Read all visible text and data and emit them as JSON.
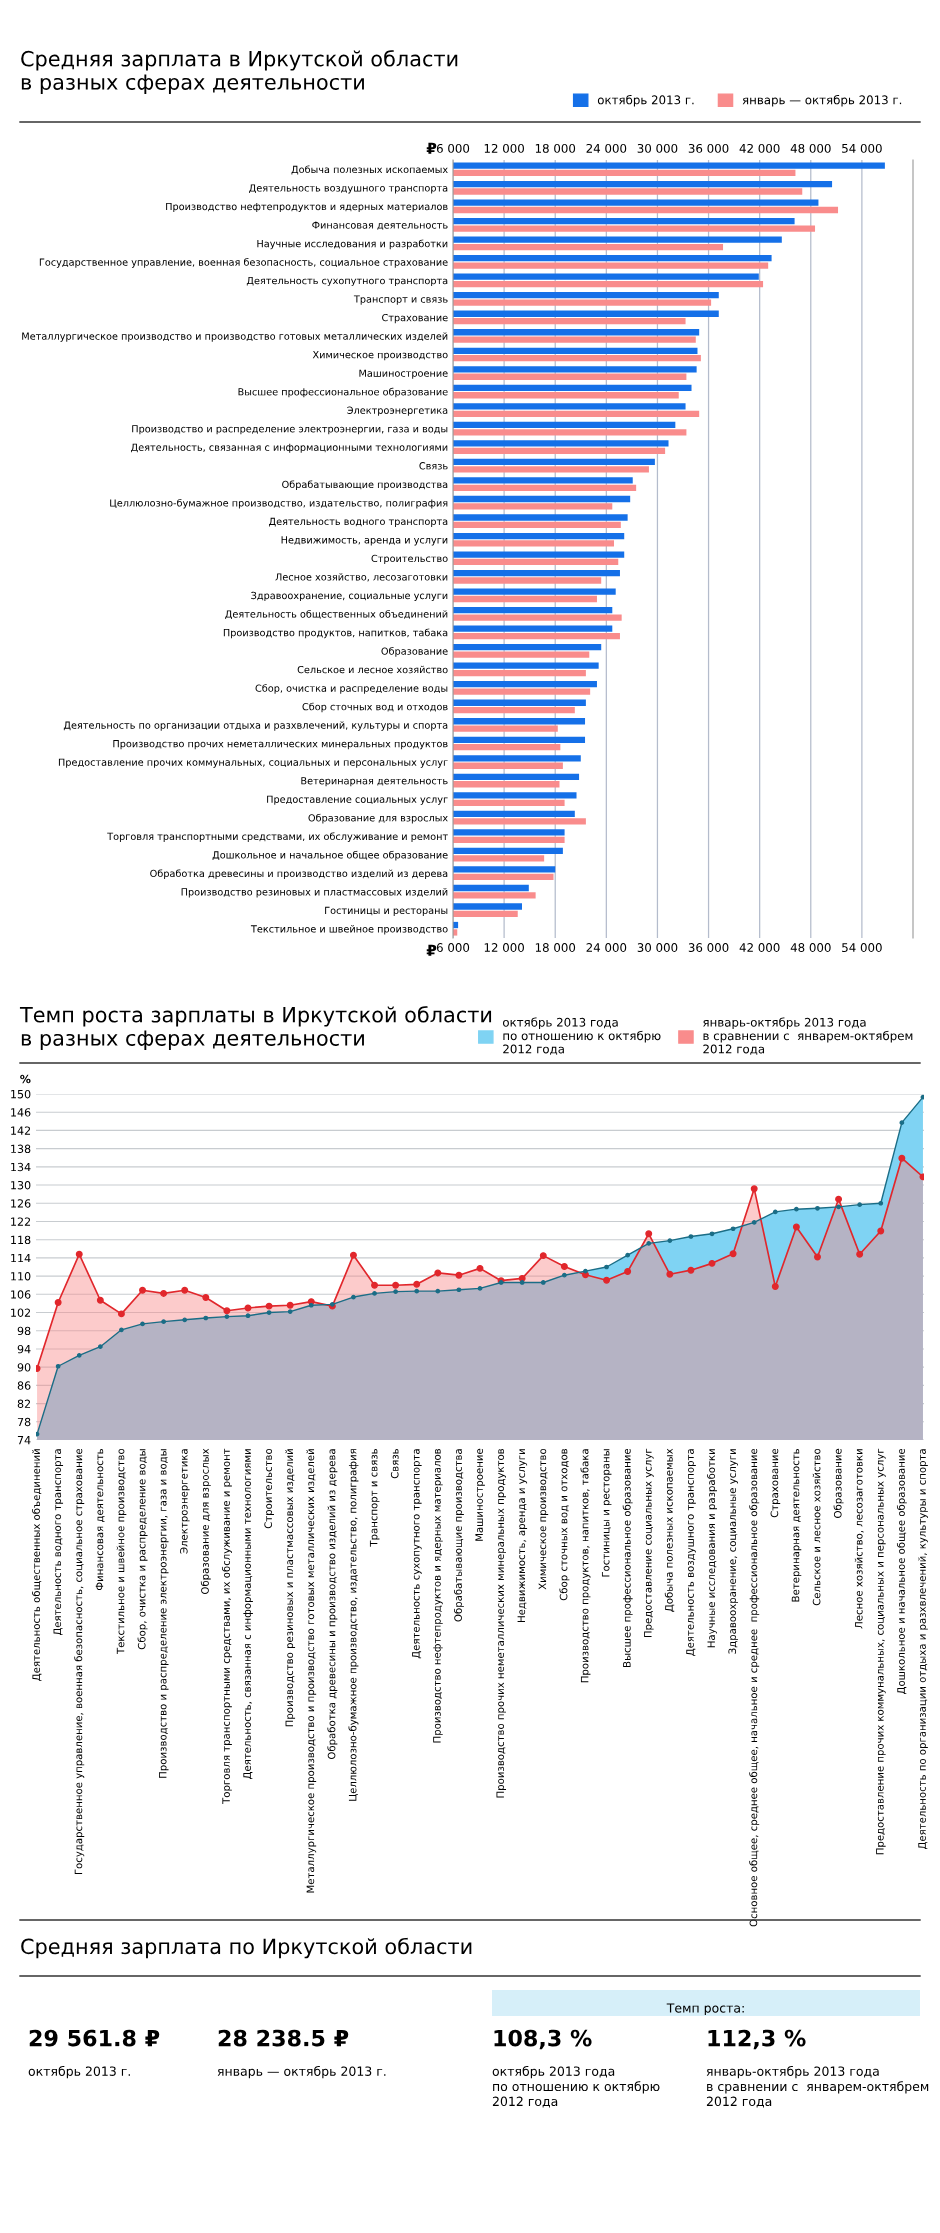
{
  "chart_data": [
    {
      "type": "bar",
      "orientation": "horizontal",
      "title": "Средняя зарплата в Иркутской области\nв разных сферах деятельности",
      "categories": [
        "Добыча полезных ископаемых",
        "Деятельность воздушного транспорта",
        "Производство нефтепродуктов и ядерных материалов",
        "Финансовая деятельность",
        "Научные исследования и разработки",
        "Государственное управление, военная безопасность, социальное страхование",
        "Деятельность сухопутного транспорта",
        "Транспорт и связь",
        "Страхование",
        "Металлургическое производство и производство готовых металлических изделей",
        "Химическое производство",
        "Машиностроение",
        "Высшее профессиональное образование",
        "Электроэнергетика",
        "Производство и распределение электроэнергии, газа и воды",
        "Деятельность, связанная с информационными технологиями",
        "Связь",
        "Обрабатывающие производства",
        "Целлюлозно-бумажное производство, издательство, полиграфия",
        "Деятельность водного транспорта",
        "Недвижимость, аренда и услуги",
        "Строительство",
        "Лесное хозяйство, лесозаготовки",
        "Здравоохранение, социальные услуги",
        "Деятельность общественных объединений",
        "Производство продуктов, напитков, табака",
        "Образование",
        "Сельское и лесное хозяйство",
        "Сбор, очистка и распределение воды",
        "Сбор сточных вод и отходов",
        "Деятельность по организации отдыха и разхвлечений, культуры и спорта",
        "Производство прочих неметаллических минеральных продуктов",
        "Предоставление прочих коммунальных, социальных и персональных услуг",
        "Ветеринарная деятельность",
        "Предоставление социальных услуг",
        "Образование для взрослых",
        "Торговля транспортными средствами, их обслуживание и ремонт",
        "Дошкольное и начальное общее образование",
        "Обработка древесины и производство изделий из дерева",
        "Производство резиновых и пластмассовых изделий",
        "Гостиницы и рестораны",
        "Текстильное и швейное производство"
      ],
      "series": [
        {
          "name": "октябрь 2013 г.",
          "color": "#1570e8",
          "values": [
            56700,
            50500,
            48900,
            46100,
            44600,
            43400,
            41900,
            37200,
            37200,
            34900,
            34700,
            34600,
            34000,
            33300,
            32100,
            31300,
            29700,
            27100,
            26800,
            26500,
            26100,
            26100,
            25600,
            25100,
            24700,
            24700,
            23400,
            23100,
            22900,
            21600,
            21500,
            21500,
            21000,
            20800,
            20500,
            20300,
            19100,
            18900,
            18000,
            14900,
            14100,
            6600
          ]
        },
        {
          "name": "январь — октябрь 2013 г.",
          "color": "#f98c8c",
          "values": [
            46200,
            47000,
            51200,
            48500,
            37700,
            43000,
            42400,
            36300,
            33300,
            34500,
            35100,
            33400,
            32500,
            34900,
            33400,
            30900,
            29000,
            27500,
            24700,
            25700,
            24900,
            25400,
            23400,
            22900,
            25800,
            25600,
            22000,
            21600,
            22100,
            20300,
            18300,
            18600,
            18900,
            18500,
            19100,
            21600,
            19100,
            16700,
            17800,
            15700,
            13600,
            6500
          ]
        }
      ],
      "xlabel": "₽",
      "x2label": "₽",
      "xlim": [
        6000,
        60000
      ],
      "x2lim": [
        6000,
        60000
      ],
      "xticks": [
        {
          "value": 6000,
          "label": "6 000"
        },
        {
          "value": 12000,
          "label": "12 000"
        },
        {
          "value": 18000,
          "label": "18 000"
        },
        {
          "value": 24000,
          "label": "24 000"
        },
        {
          "value": 30000,
          "label": "30 000"
        },
        {
          "value": 36000,
          "label": "36 000"
        },
        {
          "value": 42000,
          "label": "42 000"
        },
        {
          "value": 48000,
          "label": "48 000"
        },
        {
          "value": 54000,
          "label": "54 000"
        }
      ],
      "x2ticks": [
        {
          "value": 6000,
          "label": "6 000"
        },
        {
          "value": 12000,
          "label": "12 000"
        },
        {
          "value": 18000,
          "label": "18 000"
        },
        {
          "value": 24000,
          "label": "24 000"
        },
        {
          "value": 30000,
          "label": "30 000"
        },
        {
          "value": 36000,
          "label": "36 000"
        },
        {
          "value": 42000,
          "label": "42 000"
        },
        {
          "value": 48000,
          "label": "48 000"
        },
        {
          "value": 54000,
          "label": "54 000"
        }
      ],
      "grid": "x",
      "legend": "top right"
    },
    {
      "type": "area",
      "title": "Темп роста зарплаты в Иркутской области\nв разных сферах деятельности",
      "ylabel": "%",
      "categories": [
        "Деятельность общественных объединений",
        "Деятельность водного транспорта",
        "Государственное управление, военная безопасность, социальное страхование",
        "Финансовая деятельность",
        "Текстильное и швейное производство",
        "Сбор, очистка и распределение воды",
        "Производство и распределение электроэнергии, газа и воды",
        "Электроэнергетика",
        "Образование для взрослых",
        "Торговля транспортными средствами, их обслуживание и ремонт",
        "Деятельность, связанная с информационными технологиями",
        "Строительство",
        "Производство резиновых и пластмассовых изделий",
        "Металлургическое производство и производство готовых металлических изделей",
        "Обработка древесины и производство изделий из дерева",
        "Целлюлозно-бумажное производство, издательство, полиграфия",
        "Транспорт и связь",
        "Связь",
        "Деятельность сухопутного транспорта",
        "Производство нефтепродуктов и ядерных материалов",
        "Обрабатывающие производства",
        "Машиностроение",
        "Производство прочих неметаллических минеральных продуктов",
        "Недвижимость, аренда и услуги",
        "Химическое производство",
        "Сбор сточных вод и отходов",
        "Производство продуктов, напитков, табака",
        "Гостиницы и рестораны",
        "Высшее профессиональное образование",
        "Предоставление социальных услуг",
        "Добыча полезных ископаемых",
        "Деятельность воздушного транспорта",
        "Научные исследования и разработки",
        "Здравоохранение, социальные услуги",
        "Основное общее, среднее общее, начальное и среднее  профессиональное образование",
        "Страхование",
        "Ветеринарная деятельность",
        "Сельское и лесное хозяйство",
        "Образование",
        "Лесное хозяйство, лесозаготовки",
        "Предоставление прочих коммунальных, социальных и персональных услуг",
        "Дошкольное и начальное общее образование",
        "Деятельность по организации отдыха и разхвлечений, культуры и спорта"
      ],
      "series": [
        {
          "name": "октябрь 2013 года\nпо отношению к октябрю\n2012 года",
          "color": "#7fd3f3",
          "values": [
            75.3,
            90.2,
            92.6,
            94.5,
            98.2,
            99.5,
            100,
            100.4,
            100.8,
            101.1,
            101.3,
            102,
            102.2,
            103.6,
            103.8,
            105.4,
            106.2,
            106.6,
            106.7,
            106.7,
            107,
            107.3,
            108.6,
            108.6,
            108.6,
            110.2,
            111.1,
            112,
            114.6,
            117.2,
            117.8,
            118.7,
            119.3,
            120.4,
            121.8,
            124.1,
            124.7,
            124.9,
            125.2,
            125.7,
            126,
            143.7,
            149.3
          ]
        },
        {
          "name": "январь-октябрь 2013 года\nв сравнении с  январем-октябрем\n2012 года",
          "color": "#f98c8c",
          "values": [
            89.7,
            104.2,
            114.8,
            104.7,
            101.7,
            106.9,
            106.2,
            106.9,
            105.3,
            102.4,
            103,
            103.4,
            103.6,
            104.4,
            103.4,
            114.6,
            108,
            108,
            108.2,
            110.7,
            110.2,
            111.7,
            109,
            109.5,
            114.5,
            112.1,
            110.3,
            109.1,
            111,
            119.3,
            110.4,
            111.3,
            112.8,
            114.9,
            129.2,
            107.7,
            120.8,
            114.2,
            126.9,
            114.8,
            119.9,
            135.9,
            131.8
          ]
        }
      ],
      "ylim": [
        74,
        150
      ],
      "yticks": [
        74,
        78,
        82,
        86,
        90,
        94,
        98,
        102,
        106,
        110,
        114,
        118,
        122,
        126,
        130,
        134,
        138,
        142,
        146,
        150
      ],
      "marker": "circle",
      "grid": "y",
      "legend": "top right"
    },
    {
      "type": "other",
      "title": "Средняя зарплата по Иркутской области",
      "annotations": [
        "29 561.8 ₽",
        "октябрь 2013 г.",
        "28 238.5 ₽",
        "январь — октябрь 2013 г.",
        "Темп роста:",
        "108,3 %",
        "октябрь 2013 года\nпо отношению к октябрю\n2012 года",
        "112,3 %",
        "январь-октябрь 2013 года\nв сравнении с  январем-октябрем\n2012 года"
      ]
    }
  ]
}
